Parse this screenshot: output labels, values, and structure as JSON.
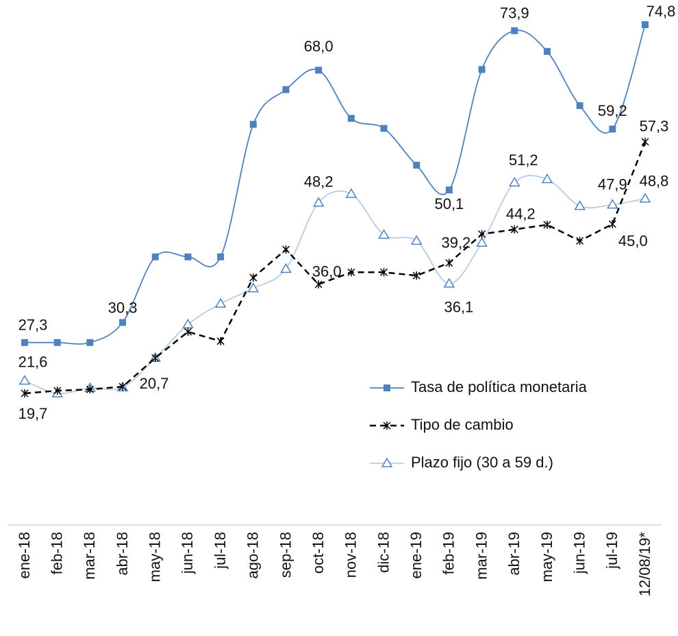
{
  "chart_data": {
    "type": "line",
    "categories": [
      "ene-18",
      "feb-18",
      "mar-18",
      "abr-18",
      "may-18",
      "jun-18",
      "jul-18",
      "ago-18",
      "sep-18",
      "oct-18",
      "nov-18",
      "dic-18",
      "ene-19",
      "feb-19",
      "mar-19",
      "abr-19",
      "may-19",
      "jun-19",
      "jul-19",
      "12/08/19*"
    ],
    "series": [
      {
        "name": "Tasa de política monetaria",
        "color": "#4f81bd",
        "marker": "square",
        "dash": false,
        "values": [
          27.3,
          27.3,
          27.3,
          30.3,
          40.1,
          40.1,
          40.1,
          59.9,
          65.1,
          68.0,
          60.8,
          59.3,
          53.8,
          50.1,
          68.1,
          73.9,
          70.8,
          62.7,
          59.2,
          74.8
        ],
        "value_labels": [
          "27,3",
          null,
          null,
          "30,3",
          null,
          null,
          null,
          null,
          null,
          "68,0",
          null,
          null,
          null,
          "50,1",
          null,
          "73,9",
          null,
          null,
          "59,2",
          "74,8"
        ]
      },
      {
        "name": "Tipo de cambio",
        "color": "#000000",
        "marker": "star",
        "dash": true,
        "values": [
          19.7,
          20.1,
          20.3,
          20.7,
          25.0,
          28.9,
          27.5,
          37.0,
          41.2,
          36.0,
          37.8,
          37.8,
          37.3,
          39.2,
          43.5,
          44.2,
          44.9,
          42.5,
          45.0,
          57.3
        ],
        "value_labels": [
          "19,7",
          null,
          null,
          "20,7",
          null,
          null,
          null,
          null,
          null,
          "36,0",
          null,
          null,
          null,
          "39,2",
          null,
          "44,2",
          null,
          null,
          "45,0",
          "57,3"
        ]
      },
      {
        "name": "Plazo fijo (30 a 59 d.)",
        "color": "#b8cce4",
        "marker": "triangle",
        "dash": false,
        "values": [
          21.6,
          19.7,
          20.5,
          20.6,
          25.0,
          30.0,
          33.1,
          35.4,
          38.3,
          48.2,
          49.5,
          43.4,
          42.5,
          36.1,
          42.2,
          51.2,
          51.7,
          47.7,
          47.9,
          48.8
        ],
        "value_labels": [
          "21,6",
          null,
          null,
          null,
          null,
          null,
          null,
          null,
          null,
          "48,2",
          null,
          null,
          null,
          "36,1",
          null,
          "51,2",
          null,
          null,
          "47,9",
          "48,8"
        ]
      }
    ]
  }
}
